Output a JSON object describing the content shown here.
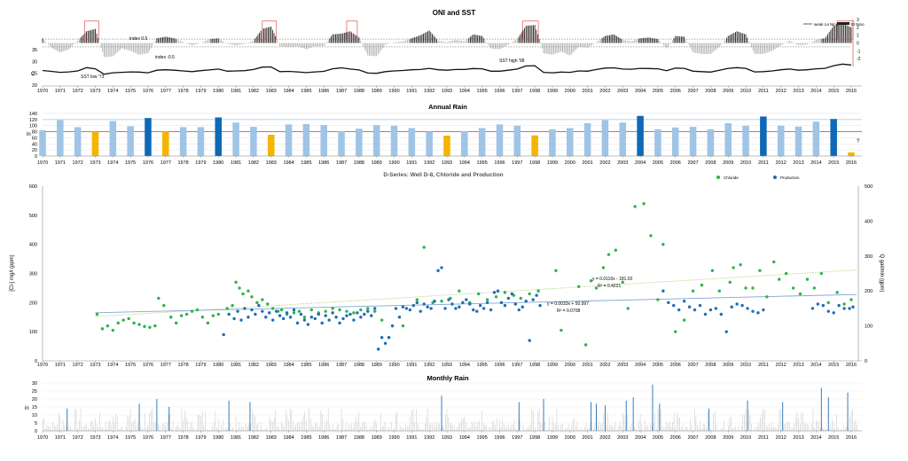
{
  "years": [
    "1970",
    "1971",
    "1972",
    "1973",
    "1974",
    "1975",
    "1976",
    "1977",
    "1978",
    "1979",
    "1980",
    "1981",
    "1982",
    "1983",
    "1984",
    "1985",
    "1986",
    "1987",
    "1988",
    "1989",
    "1990",
    "1991",
    "1992",
    "1993",
    "1994",
    "1995",
    "1996",
    "1997",
    "1998",
    "1999",
    "2000",
    "2001",
    "2002",
    "2003",
    "2004",
    "2005",
    "2006",
    "2007",
    "2008",
    "2009",
    "2010",
    "2011",
    "2012",
    "2013",
    "2014",
    "2015",
    "2016"
  ],
  "colors": {
    "gray": "#b0b0b0",
    "black": "#222222",
    "lightblue": "#9fc4e6",
    "darkblue": "#1069b6",
    "gold": "#f5b400",
    "green": "#2db34a",
    "blue": "#1f6db4",
    "red": "#e05050",
    "trendGreen": "#c5dd9a",
    "trendBlue": "#7fa7d6"
  },
  "chart_data": [
    {
      "type": "bar",
      "title": "ONI and SST",
      "yleft_ticks": [
        "35",
        "30",
        "25",
        "20"
      ],
      "yleft_unit": "C",
      "yright_ticks": [
        "3",
        "2",
        "1",
        "0",
        "-1",
        "-2"
      ],
      "ylim_oni": [
        -3,
        3
      ],
      "ylim_sst": [
        20,
        35
      ],
      "legend": [
        "weak La Nina",
        "El Nino"
      ],
      "legend_position": "top-right",
      "annotations": [
        "index 0.5",
        "index -0.5",
        "SST low '73",
        "SST high '98"
      ],
      "x": [
        1970.0,
        1970.5,
        1971.0,
        1971.5,
        1972.0,
        1972.5,
        1973.0,
        1973.5,
        1974.0,
        1974.5,
        1975.0,
        1975.5,
        1976.0,
        1976.5,
        1977.0,
        1977.5,
        1978.0,
        1978.5,
        1979.0,
        1979.5,
        1980.0,
        1980.5,
        1981.0,
        1981.5,
        1982.0,
        1982.5,
        1983.0,
        1983.5,
        1984.0,
        1984.5,
        1985.0,
        1985.5,
        1986.0,
        1986.5,
        1987.0,
        1987.5,
        1988.0,
        1988.5,
        1989.0,
        1989.5,
        1990.0,
        1990.5,
        1991.0,
        1991.5,
        1992.0,
        1992.5,
        1993.0,
        1993.5,
        1994.0,
        1994.5,
        1995.0,
        1995.5,
        1996.0,
        1996.5,
        1997.0,
        1997.5,
        1998.0,
        1998.5,
        1999.0,
        1999.5,
        2000.0,
        2000.5,
        2001.0,
        2001.5,
        2002.0,
        2002.5,
        2003.0,
        2003.5,
        2004.0,
        2004.5,
        2005.0,
        2005.5,
        2006.0,
        2006.5,
        2007.0,
        2007.5,
        2008.0,
        2008.5,
        2009.0,
        2009.5,
        2010.0,
        2010.5,
        2011.0,
        2011.5,
        2012.0,
        2012.5,
        2013.0,
        2013.5,
        2014.0,
        2014.5,
        2015.0,
        2015.5,
        2016.0
      ],
      "oni": [
        0.6,
        -0.6,
        -1.2,
        -0.8,
        0.3,
        1.5,
        1.8,
        -1.8,
        -1.7,
        -0.7,
        -1.0,
        -1.5,
        -1.3,
        0.6,
        0.8,
        0.6,
        0.1,
        -0.3,
        0.0,
        0.5,
        0.6,
        -0.1,
        -0.3,
        -0.1,
        0.3,
        1.8,
        2.1,
        -0.4,
        -0.5,
        -0.4,
        -0.8,
        -0.4,
        -0.4,
        1.1,
        1.2,
        1.5,
        0.7,
        -1.6,
        -1.7,
        -0.2,
        0.1,
        0.2,
        0.6,
        1.0,
        1.6,
        0.3,
        0.1,
        0.4,
        0.2,
        1.1,
        0.9,
        -0.7,
        -0.8,
        -0.2,
        0.5,
        2.2,
        2.3,
        -1.3,
        -1.5,
        -1.1,
        -1.6,
        -0.5,
        -0.6,
        0.1,
        0.9,
        1.1,
        0.4,
        0.2,
        0.6,
        0.7,
        0.5,
        -0.7,
        0.9,
        0.8,
        -1.2,
        -1.4,
        -1.4,
        -0.5,
        0.9,
        1.5,
        1.1,
        -1.4,
        -1.4,
        -1.0,
        -0.3,
        0.3,
        -0.3,
        -0.2,
        0.4,
        0.6,
        2.2,
        2.5,
        2.0
      ],
      "sst": [
        26.2,
        25.8,
        25.4,
        25.6,
        26.0,
        27.4,
        26.9,
        24.6,
        25.2,
        25.4,
        25.6,
        25.5,
        25.2,
        26.3,
        26.5,
        26.3,
        26.0,
        25.7,
        26.1,
        26.4,
        26.8,
        25.9,
        26.0,
        26.1,
        26.6,
        27.6,
        27.7,
        25.7,
        25.8,
        25.6,
        25.3,
        25.6,
        25.8,
        26.9,
        27.3,
        26.8,
        26.4,
        25.1,
        25.0,
        25.7,
        26.0,
        26.2,
        26.5,
        26.6,
        27.1,
        26.5,
        26.3,
        26.6,
        26.6,
        27.0,
        26.9,
        25.9,
        25.9,
        26.3,
        26.8,
        28.1,
        28.2,
        25.4,
        25.2,
        25.5,
        25.4,
        26.0,
        25.9,
        26.6,
        27.2,
        27.3,
        26.8,
        26.7,
        27.1,
        27.0,
        26.9,
        26.1,
        27.2,
        27.1,
        25.9,
        25.7,
        25.5,
        26.3,
        27.1,
        27.4,
        27.1,
        25.6,
        25.7,
        26.0,
        26.5,
        26.8,
        26.3,
        26.5,
        26.9,
        27.1,
        28.2,
        28.9,
        28.5
      ]
    },
    {
      "type": "bar",
      "title": "Annual Rain",
      "ylabel": "in",
      "ylim": [
        0,
        140
      ],
      "yticks": [
        "140",
        "120",
        "100",
        "80",
        "60",
        "40",
        "20",
        "0"
      ],
      "reference_lines": [
        {
          "value": 120,
          "color": "#9fc4e6"
        },
        {
          "value": 80,
          "color": "#e05050"
        }
      ],
      "annotations": [
        "?"
      ],
      "categories": [
        "1970",
        "1971",
        "1972",
        "1973",
        "1974",
        "1975",
        "1976",
        "1977",
        "1978",
        "1979",
        "1980",
        "1981",
        "1982",
        "1983",
        "1984",
        "1985",
        "1986",
        "1987",
        "1988",
        "1989",
        "1990",
        "1991",
        "1992",
        "1993",
        "1994",
        "1995",
        "1996",
        "1997",
        "1998",
        "1999",
        "2000",
        "2001",
        "2002",
        "2003",
        "2004",
        "2005",
        "2006",
        "2007",
        "2008",
        "2009",
        "2010",
        "2011",
        "2012",
        "2013",
        "2014",
        "2015",
        "2016"
      ],
      "values": [
        85,
        118,
        95,
        80,
        115,
        98,
        125,
        80,
        95,
        95,
        127,
        110,
        96,
        70,
        104,
        105,
        102,
        82,
        90,
        102,
        100,
        92,
        80,
        67,
        82,
        92,
        104,
        100,
        68,
        88,
        92,
        108,
        118,
        110,
        132,
        88,
        94,
        96,
        88,
        108,
        100,
        130,
        100,
        97,
        113,
        122,
        12
      ],
      "bar_classes": [
        "n",
        "n",
        "n",
        "dry",
        "n",
        "n",
        "wet",
        "dry",
        "n",
        "n",
        "wet",
        "n",
        "n",
        "dry",
        "n",
        "n",
        "n",
        "n",
        "n",
        "n",
        "n",
        "n",
        "n",
        "dry",
        "n",
        "n",
        "n",
        "n",
        "dry",
        "n",
        "n",
        "n",
        "n",
        "n",
        "wet",
        "n",
        "n",
        "n",
        "n",
        "n",
        "n",
        "wet",
        "n",
        "n",
        "n",
        "wet",
        "dry"
      ]
    },
    {
      "type": "scatter",
      "title": "D-Series: Well D-8, Chloride and Production",
      "ylabel": "[Cl-] mg/l (ppm)",
      "y2label": "Q gal/min (gpm)",
      "ylim": [
        0,
        600
      ],
      "y2lim": [
        0,
        500
      ],
      "yticks": [
        "600",
        "500",
        "400",
        "300",
        "200",
        "100",
        "0"
      ],
      "y2ticks": [
        "500",
        "400",
        "300",
        "200",
        "100",
        "0"
      ],
      "xlim": [
        1970,
        2016
      ],
      "legend_position": "top-right",
      "series": [
        {
          "name": "Chloride",
          "color": "#2db34a",
          "x": [
            1973.1,
            1973.4,
            1973.7,
            1974.0,
            1974.3,
            1974.6,
            1974.9,
            1975.2,
            1975.5,
            1975.8,
            1976.1,
            1976.4,
            1976.6,
            1976.9,
            1977.3,
            1977.6,
            1977.9,
            1978.2,
            1978.5,
            1978.8,
            1979.1,
            1979.4,
            1979.7,
            1980.0,
            1980.5,
            1980.8,
            1981.0,
            1981.2,
            1981.4,
            1981.7,
            1981.9,
            1982.2,
            1982.5,
            1982.8,
            1983.1,
            1983.4,
            1983.6,
            1983.9,
            1984.3,
            1984.6,
            1984.9,
            1985.3,
            1985.7,
            1986.1,
            1986.5,
            1986.9,
            1987.3,
            1987.7,
            1988.1,
            1988.5,
            1988.9,
            1989.3,
            1989.7,
            1990.5,
            1991.3,
            1991.7,
            1992.2,
            1992.7,
            1993.2,
            1993.7,
            1994.3,
            1994.8,
            1995.3,
            1995.8,
            1996.3,
            1996.8,
            1997.2,
            1997.7,
            1998.2,
            1999.2,
            1999.5,
            2000.5,
            2000.9,
            2001.2,
            2001.5,
            2001.9,
            2002.2,
            2002.6,
            2003.0,
            2003.3,
            2003.7,
            2004.2,
            2004.6,
            2005.0,
            2005.3,
            2006.0,
            2006.5,
            2007.0,
            2007.5,
            2008.1,
            2008.5,
            2009.1,
            2009.3,
            2009.7,
            2010.0,
            2010.4,
            2010.8,
            2011.2,
            2011.6,
            2011.9,
            2012.3,
            2012.7,
            2013.1,
            2013.5,
            2013.9,
            2014.3,
            2014.7,
            2015.2,
            2015.6,
            2016.0
          ],
          "y": [
            160,
            110,
            120,
            105,
            130,
            140,
            145,
            130,
            125,
            118,
            115,
            120,
            215,
            190,
            150,
            130,
            155,
            160,
            170,
            175,
            150,
            130,
            155,
            160,
            180,
            190,
            270,
            250,
            230,
            240,
            220,
            200,
            210,
            195,
            180,
            170,
            175,
            160,
            165,
            170,
            150,
            175,
            165,
            170,
            180,
            175,
            170,
            165,
            175,
            180,
            170,
            140,
            80,
            120,
            210,
            390,
            200,
            205,
            215,
            240,
            200,
            230,
            210,
            220,
            235,
            225,
            215,
            230,
            240,
            310,
            105,
            255,
            55,
            275,
            250,
            320,
            365,
            380,
            270,
            180,
            530,
            540,
            430,
            210,
            400,
            100,
            140,
            240,
            260,
            310,
            240,
            270,
            320,
            330,
            250,
            250,
            310,
            220,
            340,
            280,
            300,
            250,
            230,
            280,
            250,
            300,
            200,
            235,
            195,
            210
          ]
        },
        {
          "name": "Production",
          "color": "#1f6db4",
          "x": [
            1980.3,
            1980.6,
            1980.9,
            1981.1,
            1981.3,
            1981.5,
            1981.7,
            1981.9,
            1982.1,
            1982.3,
            1982.5,
            1982.7,
            1982.9,
            1983.1,
            1983.3,
            1983.5,
            1983.7,
            1983.9,
            1984.1,
            1984.3,
            1984.5,
            1984.7,
            1984.9,
            1985.1,
            1985.3,
            1985.5,
            1985.7,
            1985.9,
            1986.1,
            1986.3,
            1986.5,
            1986.7,
            1986.9,
            1987.1,
            1987.3,
            1987.5,
            1987.7,
            1987.9,
            1988.1,
            1988.3,
            1988.5,
            1988.7,
            1988.9,
            1989.1,
            1989.3,
            1989.5,
            1989.7,
            1989.9,
            1990.1,
            1990.3,
            1990.5,
            1990.7,
            1990.9,
            1991.1,
            1991.3,
            1991.5,
            1991.7,
            1991.9,
            1992.1,
            1992.3,
            1992.5,
            1992.7,
            1992.9,
            1993.1,
            1993.3,
            1993.5,
            1993.7,
            1993.9,
            1994.1,
            1994.3,
            1994.5,
            1994.7,
            1994.9,
            1995.1,
            1995.3,
            1995.5,
            1995.7,
            1995.9,
            1996.1,
            1996.3,
            1996.5,
            1996.7,
            1996.9,
            1997.1,
            1997.3,
            1997.5,
            1997.7,
            1997.9,
            1998.1,
            1998.3,
            2005.3,
            2005.6,
            2005.9,
            2006.2,
            2006.5,
            2006.8,
            2007.1,
            2007.4,
            2007.7,
            2008.0,
            2008.3,
            2008.6,
            2008.9,
            2009.2,
            2009.5,
            2009.8,
            2010.1,
            2010.4,
            2010.7,
            2011.0,
            2013.8,
            2014.1,
            2014.4,
            2014.7,
            2015.0,
            2015.3,
            2015.6,
            2015.9,
            2016.1
          ],
          "y": [
            90,
            160,
            145,
            170,
            140,
            180,
            150,
            175,
            160,
            190,
            170,
            150,
            165,
            140,
            170,
            155,
            145,
            165,
            150,
            175,
            130,
            160,
            140,
            125,
            150,
            145,
            160,
            130,
            155,
            140,
            165,
            150,
            130,
            145,
            155,
            160,
            140,
            165,
            150,
            160,
            170,
            155,
            180,
            40,
            80,
            60,
            80,
            120,
            180,
            150,
            185,
            180,
            175,
            190,
            200,
            170,
            195,
            185,
            180,
            205,
            310,
            320,
            180,
            210,
            195,
            180,
            185,
            200,
            210,
            195,
            175,
            170,
            190,
            180,
            200,
            175,
            235,
            240,
            200,
            190,
            215,
            230,
            195,
            175,
            185,
            205,
            70,
            210,
            225,
            190,
            240,
            200,
            190,
            175,
            205,
            185,
            175,
            190,
            160,
            175,
            180,
            160,
            100,
            185,
            195,
            190,
            180,
            170,
            165,
            175,
            180,
            195,
            190,
            170,
            165,
            190,
            180,
            180,
            185
          ]
        }
      ],
      "trendlines": [
        {
          "label": "y = 0.0116x - 181.02",
          "r2": "R² = 0.4221"
        },
        {
          "label": "y = 0.0033x + 50.997",
          "r2": "R² = 0.0708"
        }
      ]
    },
    {
      "type": "bar",
      "title": "Monthly Rain",
      "ylabel": "in",
      "ylim": [
        0,
        30
      ],
      "yticks": [
        "30",
        "25",
        "20",
        "15",
        "10",
        "5",
        "0"
      ],
      "highlight_x": [
        1971.4,
        1975.5,
        1976.5,
        1977.2,
        1980.6,
        1981.8,
        1992.7,
        1997.1,
        1998.5,
        2001.2,
        2001.5,
        2002.0,
        2003.2,
        2003.6,
        2004.7,
        2005.1,
        2007.9,
        2010.1,
        2012.1,
        2014.3,
        2014.7,
        2015.8
      ],
      "highlight_values": [
        14,
        17,
        20,
        15,
        19,
        18,
        22,
        18,
        20,
        18,
        17,
        16,
        19,
        21,
        29,
        17,
        14,
        19,
        18,
        27,
        21,
        24
      ]
    }
  ]
}
